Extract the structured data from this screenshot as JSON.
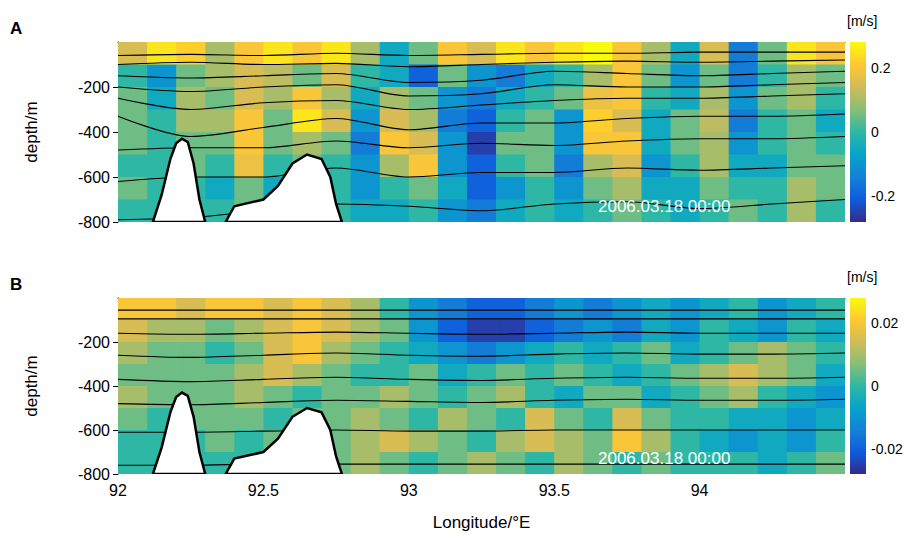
{
  "chart_data": [
    {
      "type": "heatmap",
      "panel_label": "A",
      "annotation": "2006.03.18 00:00",
      "ylabel": "depth/m",
      "xlim": [
        92,
        94.5
      ],
      "xticks": [
        92,
        92.5,
        93,
        93.5,
        94
      ],
      "ylim": [
        -800,
        0
      ],
      "yticks": [
        -800,
        -600,
        -400,
        -200
      ],
      "tick_labels": "y",
      "grid": false,
      "colorbar": {
        "label": "[m/s]",
        "range": [
          -0.28,
          0.28
        ],
        "ticks": [
          -0.2,
          0,
          0.2
        ]
      },
      "cell_x": [
        92.05,
        92.15,
        92.25,
        92.35,
        92.45,
        92.55,
        92.65,
        92.75,
        92.85,
        92.95,
        93.05,
        93.15,
        93.25,
        93.35,
        93.45,
        93.55,
        93.65,
        93.75,
        93.85,
        93.95,
        94.05,
        94.15,
        94.25,
        94.35,
        94.45
      ],
      "cell_y": [
        -50,
        -150,
        -250,
        -350,
        -450,
        -550,
        -650,
        -750
      ],
      "cells": [
        [
          0.15,
          0.25,
          0.22,
          0.1,
          0.2,
          0.25,
          0.2,
          0.25,
          0.1,
          -0.05,
          0.05,
          0.2,
          0.15,
          0.25,
          0.2,
          0.25,
          0.28,
          0.2,
          0.1,
          -0.05,
          0.15,
          -0.15,
          0.05,
          0.25,
          0.2
        ],
        [
          0.0,
          -0.1,
          0.05,
          0.1,
          0.15,
          0.12,
          0.05,
          0.15,
          0.0,
          -0.05,
          -0.2,
          0.05,
          -0.1,
          -0.15,
          -0.05,
          0.0,
          0.1,
          0.2,
          0.05,
          -0.1,
          0.05,
          -0.15,
          0.0,
          0.1,
          0.05
        ],
        [
          0.05,
          -0.05,
          0.1,
          0.05,
          0.15,
          0.1,
          0.2,
          0.1,
          -0.05,
          0.1,
          0.05,
          -0.1,
          -0.15,
          -0.05,
          0.0,
          0.05,
          0.18,
          0.2,
          0.0,
          -0.05,
          0.1,
          -0.1,
          0.05,
          0.1,
          0.0
        ],
        [
          0.05,
          0.0,
          0.1,
          0.1,
          0.2,
          0.05,
          0.25,
          0.15,
          -0.1,
          0.15,
          0.1,
          -0.15,
          -0.2,
          0.0,
          0.05,
          -0.1,
          0.22,
          0.15,
          -0.05,
          0.05,
          0.12,
          -0.15,
          0.0,
          0.05,
          -0.05
        ],
        [
          0.05,
          0.0,
          0.05,
          0.05,
          0.2,
          0.05,
          0.1,
          0.05,
          -0.15,
          0.2,
          0.15,
          -0.1,
          -0.25,
          0.05,
          0.05,
          -0.1,
          0.2,
          0.2,
          -0.05,
          0.05,
          0.1,
          -0.1,
          0.0,
          0.05,
          0.0
        ],
        [
          0.0,
          0.0,
          0.05,
          0.0,
          0.18,
          0.0,
          0.05,
          0.0,
          -0.1,
          0.1,
          0.2,
          -0.1,
          -0.2,
          0.0,
          0.05,
          -0.15,
          0.1,
          0.15,
          -0.1,
          0.0,
          0.1,
          -0.05,
          -0.05,
          0.05,
          0.05
        ],
        [
          0.05,
          0.0,
          0.0,
          -0.05,
          0.05,
          -0.05,
          0.0,
          0.0,
          -0.1,
          0.0,
          0.05,
          -0.05,
          -0.2,
          -0.1,
          0.0,
          -0.1,
          0.05,
          0.1,
          -0.05,
          -0.05,
          0.05,
          0.0,
          0.0,
          0.1,
          0.05
        ],
        [
          0.0,
          0.0,
          0.0,
          0.0,
          0.05,
          0.0,
          0.0,
          0.0,
          -0.05,
          -0.05,
          0.0,
          -0.1,
          -0.15,
          -0.05,
          0.0,
          -0.05,
          0.0,
          0.05,
          0.0,
          -0.05,
          0.0,
          0.05,
          0.0,
          0.1,
          0.0
        ]
      ],
      "contour_x": [
        92,
        92.25,
        92.5,
        92.75,
        93,
        93.25,
        93.5,
        93.75,
        94,
        94.25,
        94.5
      ],
      "contours": [
        [
          -60,
          -55,
          -60,
          -50,
          -60,
          -55,
          -50,
          -50,
          -45,
          -45,
          -45
        ],
        [
          -100,
          -90,
          -100,
          -95,
          -110,
          -100,
          -90,
          -85,
          -90,
          -85,
          -80
        ],
        [
          -150,
          -160,
          -150,
          -140,
          -180,
          -170,
          -130,
          -140,
          -150,
          -140,
          -130
        ],
        [
          -200,
          -220,
          -200,
          -190,
          -240,
          -230,
          -190,
          -200,
          -200,
          -190,
          -180
        ],
        [
          -250,
          -300,
          -270,
          -260,
          -300,
          -280,
          -260,
          -250,
          -250,
          -240,
          -230
        ],
        [
          -330,
          -420,
          -380,
          -340,
          -390,
          -360,
          -360,
          -340,
          -330,
          -330,
          -320
        ],
        [
          -480,
          -470,
          -470,
          -440,
          -470,
          -450,
          -460,
          -440,
          -430,
          -430,
          -420
        ],
        [
          -620,
          -600,
          -600,
          -560,
          -600,
          -580,
          -580,
          -560,
          -570,
          -560,
          -550
        ],
        [
          -790,
          -780,
          -750,
          -720,
          -730,
          -750,
          -720,
          -710,
          -740,
          -720,
          -700
        ]
      ],
      "topography": [
        {
          "x": [
            92.12,
            92.15,
            92.18,
            92.2,
            92.22,
            92.24,
            92.26,
            92.28,
            92.3
          ],
          "y": [
            -800,
            -680,
            -520,
            -450,
            -430,
            -445,
            -540,
            -700,
            -800
          ]
        },
        {
          "x": [
            92.37,
            92.4,
            92.45,
            92.5,
            92.55,
            92.6,
            92.65,
            92.7,
            92.73,
            92.75,
            92.77
          ],
          "y": [
            -800,
            -730,
            -715,
            -700,
            -640,
            -540,
            -500,
            -520,
            -600,
            -720,
            -800
          ]
        }
      ]
    },
    {
      "type": "heatmap",
      "panel_label": "B",
      "annotation": "2006.03.18 00:00",
      "ylabel": "depth/m",
      "xlabel": "Longitude/°E",
      "xlim": [
        92,
        94.5
      ],
      "xticks": [
        92,
        92.5,
        93,
        93.5,
        94
      ],
      "ylim": [
        -800,
        0
      ],
      "yticks": [
        -800,
        -600,
        -400,
        -200
      ],
      "tick_labels": true,
      "grid": false,
      "colorbar": {
        "label": "[m/s]",
        "range": [
          -0.028,
          0.028
        ],
        "ticks": [
          -0.02,
          0,
          0.02
        ]
      },
      "cell_x": [
        92.05,
        92.15,
        92.25,
        92.35,
        92.45,
        92.55,
        92.65,
        92.75,
        92.85,
        92.95,
        93.05,
        93.15,
        93.25,
        93.35,
        93.45,
        93.55,
        93.65,
        93.75,
        93.85,
        93.95,
        94.05,
        94.15,
        94.25,
        94.35,
        94.45
      ],
      "cell_y": [
        -50,
        -150,
        -250,
        -350,
        -450,
        -550,
        -650,
        -750
      ],
      "cells": [
        [
          0.02,
          0.02,
          0.015,
          0.02,
          0.02,
          0.015,
          0.02,
          0.015,
          0.01,
          0.0,
          -0.01,
          -0.015,
          -0.02,
          -0.02,
          -0.015,
          -0.01,
          -0.015,
          -0.01,
          -0.005,
          -0.01,
          -0.005,
          0.0,
          -0.01,
          -0.005,
          0.0
        ],
        [
          0.015,
          0.01,
          0.01,
          0.005,
          0.01,
          0.015,
          0.02,
          0.015,
          0.01,
          0.005,
          -0.01,
          -0.02,
          -0.025,
          -0.025,
          -0.02,
          -0.015,
          -0.01,
          -0.015,
          -0.005,
          -0.01,
          0.0,
          -0.005,
          -0.01,
          0.0,
          -0.005
        ],
        [
          0.01,
          0.005,
          0.005,
          0.0,
          0.005,
          0.015,
          0.02,
          0.01,
          0.005,
          0.0,
          -0.005,
          -0.01,
          -0.015,
          -0.01,
          -0.005,
          0.0,
          -0.005,
          0.0,
          0.005,
          -0.005,
          0.0,
          0.005,
          0.01,
          0.005,
          0.0
        ],
        [
          0.005,
          0.005,
          0.005,
          0.005,
          0.01,
          0.015,
          0.01,
          0.005,
          0.0,
          0.0,
          0.005,
          -0.005,
          0.0,
          0.005,
          0.0,
          0.005,
          0.0,
          -0.005,
          0.0,
          0.005,
          0.01,
          0.015,
          0.01,
          0.005,
          -0.005
        ],
        [
          0.01,
          0.005,
          0.005,
          0.005,
          0.01,
          0.005,
          0.0,
          0.005,
          0.005,
          0.01,
          0.005,
          0.0,
          0.005,
          0.01,
          0.0,
          -0.005,
          0.005,
          0.005,
          -0.005,
          0.0,
          0.005,
          0.01,
          0.0,
          -0.005,
          -0.01
        ],
        [
          0.005,
          0.0,
          0.005,
          0.005,
          0.005,
          0.0,
          0.005,
          0.005,
          0.01,
          0.005,
          0.0,
          0.01,
          0.005,
          0.0,
          0.015,
          0.005,
          0.0,
          0.015,
          0.005,
          0.0,
          0.0,
          -0.005,
          -0.005,
          -0.01,
          -0.005
        ],
        [
          0.0,
          0.0,
          0.0,
          0.005,
          0.0,
          0.005,
          0.0,
          0.005,
          0.01,
          0.015,
          0.01,
          0.005,
          0.0,
          0.01,
          0.015,
          0.01,
          0.005,
          0.02,
          0.01,
          0.0,
          -0.005,
          -0.01,
          -0.005,
          -0.01,
          0.0
        ],
        [
          0.0,
          0.0,
          0.0,
          0.0,
          0.0,
          0.0,
          0.0,
          0.005,
          0.01,
          0.005,
          0.0,
          0.005,
          0.01,
          0.005,
          0.0,
          0.01,
          0.005,
          0.0,
          0.005,
          0.0,
          0.0,
          0.0,
          -0.005,
          0.0,
          0.005
        ]
      ],
      "contour_x": [
        92,
        92.25,
        92.5,
        92.75,
        93,
        93.25,
        93.5,
        93.75,
        94,
        94.25,
        94.5
      ],
      "contours": [
        [
          -55,
          -55,
          -55,
          -55,
          -55,
          -55,
          -55,
          -55,
          -55,
          -55,
          -55
        ],
        [
          -95,
          -95,
          -95,
          -95,
          -95,
          -95,
          -95,
          -95,
          -95,
          -95,
          -95
        ],
        [
          -160,
          -165,
          -160,
          -155,
          -160,
          -165,
          -160,
          -155,
          -160,
          -160,
          -160
        ],
        [
          -260,
          -270,
          -260,
          -250,
          -260,
          -265,
          -255,
          -250,
          -255,
          -255,
          -250
        ],
        [
          -370,
          -380,
          -370,
          -360,
          -370,
          -375,
          -365,
          -360,
          -365,
          -365,
          -360
        ],
        [
          -480,
          -485,
          -475,
          -465,
          -470,
          -475,
          -465,
          -460,
          -465,
          -465,
          -460
        ],
        [
          -610,
          -610,
          -605,
          -600,
          -605,
          -605,
          -600,
          -600,
          -600,
          -600,
          -600
        ],
        [
          -760,
          -760,
          -755,
          -755,
          -755,
          -755,
          -755,
          -755,
          -755,
          -755,
          -755
        ]
      ],
      "topography": [
        {
          "x": [
            92.12,
            92.15,
            92.18,
            92.2,
            92.22,
            92.24,
            92.26,
            92.28,
            92.3
          ],
          "y": [
            -800,
            -680,
            -520,
            -450,
            -430,
            -445,
            -540,
            -700,
            -800
          ]
        },
        {
          "x": [
            92.37,
            92.4,
            92.45,
            92.5,
            92.55,
            92.6,
            92.65,
            92.7,
            92.73,
            92.75,
            92.77
          ],
          "y": [
            -800,
            -730,
            -715,
            -700,
            -640,
            -540,
            -500,
            -520,
            -600,
            -720,
            -800
          ]
        }
      ]
    }
  ]
}
